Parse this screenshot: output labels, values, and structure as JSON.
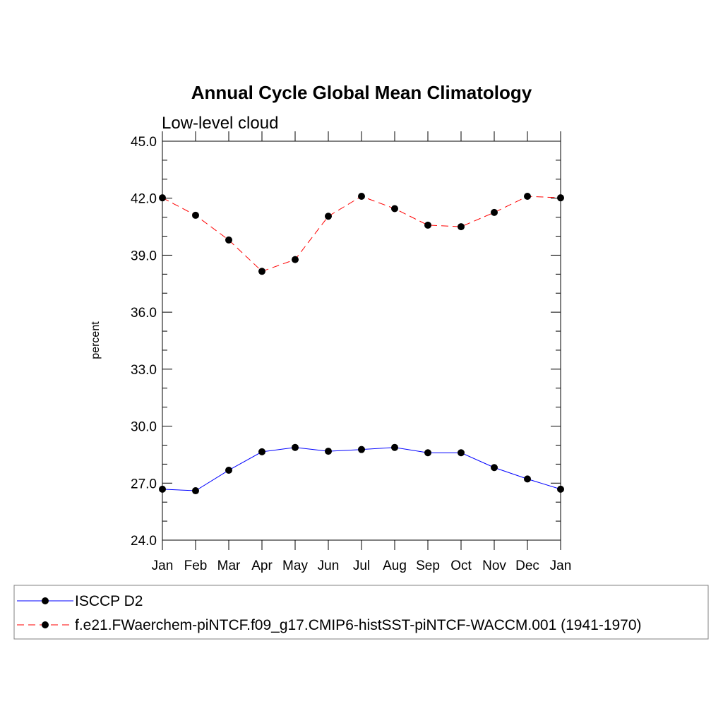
{
  "chart_data": {
    "type": "line",
    "title": "Annual Cycle Global Mean Climatology",
    "subtitle": "Low-level cloud",
    "xlabel": "",
    "ylabel": "percent",
    "ylim": [
      24.0,
      45.0
    ],
    "yticks": [
      "24.0",
      "27.0",
      "30.0",
      "33.0",
      "36.0",
      "39.0",
      "42.0",
      "45.0"
    ],
    "categories": [
      "Jan",
      "Feb",
      "Mar",
      "Apr",
      "May",
      "Jun",
      "Jul",
      "Aug",
      "Sep",
      "Oct",
      "Nov",
      "Dec",
      "Jan"
    ],
    "series": [
      {
        "name": "ISCCP D2",
        "color": "#0000ff",
        "dash": "solid",
        "marker": "filled-circle",
        "values": [
          26.68,
          26.6,
          27.68,
          28.65,
          28.88,
          28.68,
          28.77,
          28.88,
          28.6,
          28.6,
          27.82,
          27.22,
          26.68
        ]
      },
      {
        "name": "f.e21.FWaerchem-piNTCF.f09_g17.CMIP6-histSST-piNTCF-WACCM.001 (1941-1970)",
        "color": "#ff0000",
        "dash": "dashed",
        "marker": "filled-circle",
        "values": [
          42.02,
          41.1,
          39.8,
          38.15,
          38.77,
          41.05,
          42.1,
          41.45,
          40.58,
          40.5,
          41.25,
          42.1,
          42.02
        ]
      }
    ],
    "legend_position": "bottom"
  }
}
